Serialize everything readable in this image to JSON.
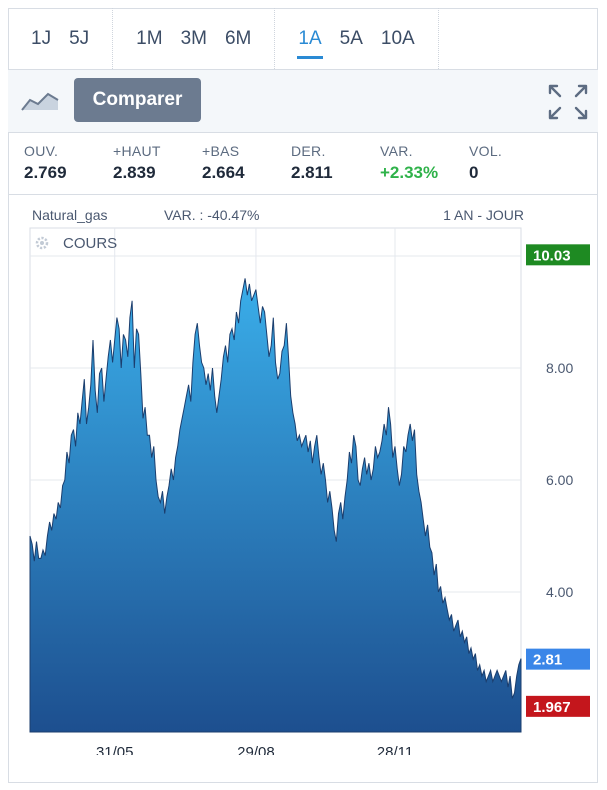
{
  "periods": {
    "groups": [
      [
        {
          "label": "1J",
          "active": false
        },
        {
          "label": "5J",
          "active": false
        }
      ],
      [
        {
          "label": "1M",
          "active": false
        },
        {
          "label": "3M",
          "active": false
        },
        {
          "label": "6M",
          "active": false
        }
      ],
      [
        {
          "label": "1A",
          "active": true
        },
        {
          "label": "5A",
          "active": false
        },
        {
          "label": "10A",
          "active": false
        }
      ]
    ]
  },
  "toolbar": {
    "compare_label": "Comparer"
  },
  "stats": [
    {
      "label": "OUV.",
      "value": "2.769",
      "positive": false
    },
    {
      "label": "+HAUT",
      "value": "2.839",
      "positive": false
    },
    {
      "label": "+BAS",
      "value": "2.664",
      "positive": false
    },
    {
      "label": "DER.",
      "value": "2.811",
      "positive": false
    },
    {
      "label": "VAR.",
      "value": "+2.33%",
      "positive": true
    },
    {
      "label": "VOL.",
      "value": "0",
      "positive": false
    }
  ],
  "chart_header": {
    "instrument": "Natural_gas",
    "variation": "VAR. : -40.47%",
    "range": "1 AN - JOUR"
  },
  "chart_data": {
    "type": "area",
    "series_label": "COURS",
    "ylim": [
      1.5,
      10.5
    ],
    "yticks": [
      {
        "v": 4,
        "label": "4.00"
      },
      {
        "v": 6,
        "label": "6.00"
      },
      {
        "v": 8,
        "label": "8.00"
      }
    ],
    "xticks": [
      {
        "i": 39,
        "label": "31/05"
      },
      {
        "i": 104,
        "label": "29/08"
      },
      {
        "i": 168,
        "label": "28/11"
      }
    ],
    "badges": [
      {
        "label": "10.03",
        "v": 10.03,
        "color": "#1e8a22"
      },
      {
        "label": "2.81",
        "v": 2.81,
        "color": "#3a86e8"
      },
      {
        "label": "1.967",
        "v": 1.967,
        "color": "#c4161c"
      }
    ],
    "grid": true,
    "values": [
      5.0,
      4.85,
      4.55,
      4.9,
      4.6,
      4.6,
      4.75,
      4.65,
      5.0,
      5.25,
      5.1,
      5.4,
      5.3,
      5.6,
      5.5,
      5.9,
      6.0,
      6.5,
      6.3,
      6.8,
      6.9,
      6.6,
      7.2,
      7.0,
      7.4,
      7.8,
      7.0,
      7.3,
      7.7,
      8.5,
      7.6,
      7.2,
      7.9,
      8.0,
      7.4,
      7.8,
      8.2,
      8.5,
      8.1,
      8.5,
      8.9,
      8.7,
      8.0,
      8.6,
      8.5,
      8.2,
      8.9,
      9.2,
      8.0,
      8.7,
      8.6,
      7.9,
      7.1,
      7.3,
      6.8,
      6.8,
      6.4,
      6.6,
      6.0,
      5.7,
      5.6,
      5.8,
      5.4,
      5.7,
      5.9,
      6.2,
      6.0,
      6.4,
      6.6,
      6.9,
      7.1,
      7.3,
      7.5,
      7.7,
      7.4,
      8.1,
      8.6,
      8.8,
      8.4,
      8.1,
      8.0,
      7.7,
      7.9,
      7.6,
      8.0,
      7.5,
      7.2,
      7.5,
      7.8,
      8.2,
      8.4,
      8.1,
      8.6,
      8.7,
      8.5,
      9.0,
      8.8,
      9.2,
      9.4,
      9.6,
      9.3,
      9.5,
      9.2,
      9.3,
      9.4,
      9.1,
      8.8,
      9.1,
      9.0,
      8.6,
      8.2,
      8.4,
      8.9,
      8.1,
      7.8,
      7.9,
      8.3,
      8.4,
      8.8,
      8.2,
      7.5,
      7.2,
      7.0,
      6.7,
      6.8,
      6.6,
      6.7,
      6.8,
      6.5,
      6.7,
      6.3,
      6.6,
      6.8,
      6.4,
      6.1,
      6.3,
      6.0,
      5.6,
      5.8,
      5.5,
      5.1,
      4.9,
      5.4,
      5.6,
      5.3,
      5.7,
      6.0,
      6.5,
      6.3,
      6.8,
      6.6,
      6.0,
      5.9,
      6.2,
      6.4,
      6.1,
      6.3,
      6.0,
      6.2,
      6.6,
      6.4,
      6.5,
      6.7,
      7.0,
      6.8,
      7.3,
      7.0,
      6.4,
      6.6,
      6.2,
      5.9,
      6.1,
      6.6,
      6.5,
      6.8,
      7.0,
      6.7,
      6.9,
      6.1,
      5.8,
      5.6,
      5.3,
      5.0,
      5.2,
      4.8,
      4.7,
      4.3,
      4.5,
      4.0,
      4.1,
      3.8,
      3.9,
      3.7,
      3.5,
      3.6,
      3.3,
      3.4,
      3.5,
      3.2,
      3.3,
      3.1,
      3.2,
      2.9,
      3.0,
      2.8,
      2.9,
      2.6,
      2.7,
      2.5,
      2.6,
      2.4,
      2.5,
      2.6,
      2.4,
      2.5,
      2.6,
      2.5,
      2.4,
      2.5,
      2.6,
      2.3,
      2.5,
      2.1,
      2.2,
      2.5,
      2.7,
      2.81
    ]
  }
}
